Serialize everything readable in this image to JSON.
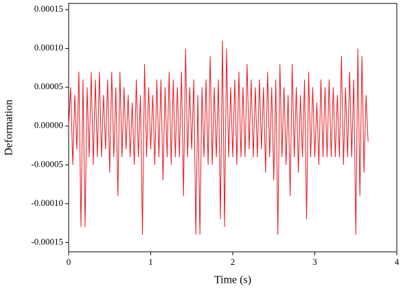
{
  "chart_data": {
    "type": "line",
    "xlabel": "Time (s)",
    "ylabel": "Deformation",
    "xlim": [
      0,
      4
    ],
    "xticks": [
      0,
      1,
      2,
      3,
      4
    ],
    "ylim": [
      -0.000162,
      0.000158
    ],
    "yticks": [
      0.00015,
      {
        "value": 0.0001,
        "label": "0.00010"
      },
      5e-05,
      {
        "value": 0,
        "label": "0.00000"
      },
      -5e-05,
      {
        "value": -0.0001,
        "label": "-0.00010"
      },
      -0.00015
    ],
    "series": [
      {
        "color": "#e8141c",
        "x": [
          0,
          0.025,
          0.05,
          0.075,
          0.1,
          0.125,
          0.15,
          0.175,
          0.2,
          0.225,
          0.25,
          0.275,
          0.3,
          0.325,
          0.35,
          0.375,
          0.4,
          0.425,
          0.45,
          0.475,
          0.5,
          0.525,
          0.55,
          0.575,
          0.6,
          0.625,
          0.65,
          0.675,
          0.7,
          0.725,
          0.75,
          0.775,
          0.8,
          0.825,
          0.85,
          0.875,
          0.9,
          0.925,
          0.95,
          0.975,
          1,
          1.025,
          1.05,
          1.075,
          1.1,
          1.125,
          1.15,
          1.175,
          1.2,
          1.225,
          1.25,
          1.275,
          1.3,
          1.325,
          1.35,
          1.375,
          1.4,
          1.425,
          1.45,
          1.475,
          1.5,
          1.525,
          1.55,
          1.575,
          1.6,
          1.625,
          1.65,
          1.675,
          1.7,
          1.725,
          1.75,
          1.775,
          1.8,
          1.825,
          1.85,
          1.875,
          1.9,
          1.925,
          1.95,
          1.975,
          2,
          2.025,
          2.05,
          2.075,
          2.1,
          2.125,
          2.15,
          2.175,
          2.2,
          2.225,
          2.25,
          2.275,
          2.3,
          2.325,
          2.35,
          2.375,
          2.4,
          2.425,
          2.45,
          2.475,
          2.5,
          2.525,
          2.55,
          2.575,
          2.6,
          2.625,
          2.65,
          2.675,
          2.7,
          2.725,
          2.75,
          2.775,
          2.8,
          2.825,
          2.85,
          2.875,
          2.9,
          2.925,
          2.95,
          2.975,
          3,
          3.025,
          3.05,
          3.075,
          3.1,
          3.125,
          3.15,
          3.175,
          3.2,
          3.225,
          3.25,
          3.275,
          3.3,
          3.325,
          3.35,
          3.375,
          3.4,
          3.425,
          3.45,
          3.475,
          3.5,
          3.525,
          3.55,
          3.575,
          3.6,
          3.625,
          3.65
        ],
        "values": [
          0,
          5e-05,
          -5e-05,
          4e-05,
          -3e-05,
          7e-05,
          -0.00013,
          6e-05,
          -0.00013,
          5e-05,
          -4e-05,
          7e-05,
          -5e-05,
          6e-05,
          -4e-05,
          7e-05,
          -4e-05,
          4e-05,
          -3e-05,
          6e-05,
          -6e-05,
          7e-05,
          -4e-05,
          5e-05,
          -9e-05,
          7e-05,
          -4e-05,
          5e-05,
          -3e-05,
          4e-05,
          -4e-05,
          3e-05,
          -5e-05,
          6e-05,
          -4e-05,
          4e-05,
          -0.00014,
          8e-05,
          -4e-05,
          5e-05,
          -3e-05,
          4e-05,
          -5e-05,
          6e-05,
          -4e-05,
          6e-05,
          -7e-05,
          5e-05,
          -4e-05,
          7e-05,
          -5e-05,
          6e-05,
          -4e-05,
          5e-05,
          -4e-05,
          7e-05,
          -9e-05,
          0.0001,
          -4e-05,
          5e-05,
          -3e-05,
          6e-05,
          -0.00014,
          4e-05,
          -0.00014,
          5e-05,
          -4e-05,
          6e-05,
          -5e-05,
          9e-05,
          -5e-05,
          5e-05,
          -4e-05,
          6e-05,
          -0.00012,
          0.00011,
          -0.00013,
          0.0001,
          -4e-05,
          5e-05,
          -4e-05,
          6e-05,
          -5e-05,
          7e-05,
          -4e-05,
          5e-05,
          -4e-05,
          8e-05,
          -3e-05,
          6e-05,
          -4e-05,
          5e-05,
          -4e-05,
          6e-05,
          -3e-05,
          5e-05,
          -6e-05,
          7e-05,
          -4e-05,
          5e-05,
          -7e-05,
          6e-05,
          -0.00014,
          8e-05,
          -4e-05,
          5e-05,
          -5e-05,
          4e-05,
          -9e-05,
          8e-05,
          -4e-05,
          5e-05,
          -6e-05,
          4e-05,
          -4e-05,
          6e-05,
          -0.00012,
          7e-05,
          -4e-05,
          5e-05,
          -4e-05,
          3e-05,
          -5e-05,
          6e-05,
          -4e-05,
          5e-05,
          -4e-05,
          6e-05,
          -4e-05,
          5e-05,
          -4e-05,
          4e-05,
          -4e-05,
          9e-05,
          -5e-05,
          5e-05,
          -4e-05,
          7e-05,
          -4e-05,
          6e-05,
          -0.00014,
          0.0001,
          -9e-05,
          9e-05,
          -6e-05,
          4e-05,
          -2e-05
        ]
      }
    ]
  }
}
